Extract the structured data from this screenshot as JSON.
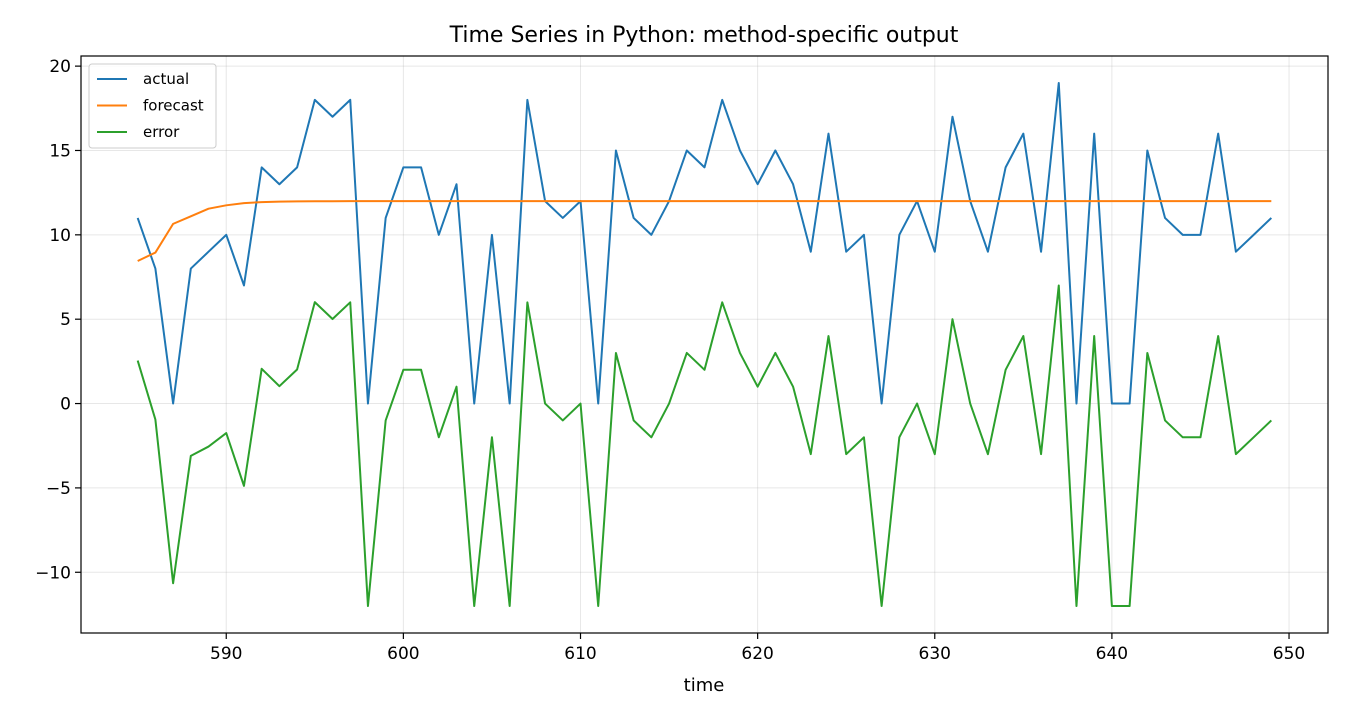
{
  "chart_data": {
    "type": "line",
    "title": "Time Series in Python: method-specific output",
    "xlabel": "time",
    "ylabel": "",
    "xlim": [
      581.8,
      652.2
    ],
    "ylim": [
      -13.6,
      20.6
    ],
    "xticks": [
      590,
      600,
      610,
      620,
      630,
      640,
      650
    ],
    "yticks": [
      20,
      15,
      10,
      5,
      0,
      -5,
      -10
    ],
    "ytick_labels": [
      "20",
      "15",
      "10",
      "5",
      "0",
      "−5",
      "−10"
    ],
    "grid": true,
    "legend_position": "top-left",
    "x": [
      585,
      586,
      587,
      588,
      589,
      590,
      591,
      592,
      593,
      594,
      595,
      596,
      597,
      598,
      599,
      600,
      601,
      602,
      603,
      604,
      605,
      606,
      607,
      608,
      609,
      610,
      611,
      612,
      613,
      614,
      615,
      616,
      617,
      618,
      619,
      620,
      621,
      622,
      623,
      624,
      625,
      626,
      627,
      628,
      629,
      630,
      631,
      632,
      633,
      634,
      635,
      636,
      637,
      638,
      639,
      640,
      641,
      642,
      643,
      644,
      645,
      646,
      647,
      648,
      649
    ],
    "series": [
      {
        "name": "actual",
        "color": "#1f77b4",
        "values": [
          11,
          8,
          0,
          8,
          9,
          10,
          7,
          14,
          13,
          14,
          18,
          17,
          18,
          0,
          11,
          14,
          14,
          10,
          13,
          0,
          10,
          0,
          18,
          12,
          11,
          12,
          0,
          15,
          11,
          10,
          12,
          15,
          14,
          18,
          15,
          13,
          15,
          13,
          9,
          16,
          9,
          10,
          0,
          10,
          12,
          9,
          17,
          12,
          9,
          14,
          16,
          9,
          19,
          0,
          16,
          0,
          0,
          15,
          11,
          10,
          10,
          16,
          9,
          10,
          11
        ]
      },
      {
        "name": "forecast",
        "color": "#ff7f0e",
        "values": [
          8.45,
          8.95,
          10.65,
          11.1,
          11.55,
          11.75,
          11.88,
          11.94,
          11.97,
          11.98,
          11.99,
          11.99,
          12,
          12,
          12,
          12,
          12,
          12,
          12,
          12,
          12,
          12,
          12,
          12,
          12,
          12,
          12,
          12,
          12,
          12,
          12,
          12,
          12,
          12,
          12,
          12,
          12,
          12,
          12,
          12,
          12,
          12,
          12,
          12,
          12,
          12,
          12,
          12,
          12,
          12,
          12,
          12,
          12,
          12,
          12,
          12,
          12,
          12,
          12,
          12,
          12,
          12,
          12,
          12,
          12
        ]
      },
      {
        "name": "error",
        "color": "#2ca02c",
        "values": [
          2.55,
          -0.95,
          -10.65,
          -3.1,
          -2.55,
          -1.75,
          -4.88,
          2.06,
          1.03,
          2.02,
          6.01,
          5.01,
          6,
          -12,
          -1,
          2,
          2,
          -2,
          1,
          -12,
          -2,
          -12,
          6,
          0,
          -1,
          0,
          -12,
          3,
          -1,
          -2,
          0,
          3,
          2,
          6,
          3,
          1,
          3,
          1,
          -3,
          4,
          -3,
          -2,
          -12,
          -2,
          0,
          -3,
          5,
          0,
          -3,
          2,
          4,
          -3,
          7,
          -12,
          4,
          -12,
          -12,
          3,
          -1,
          -2,
          -2,
          4,
          -3,
          -2,
          -1
        ]
      }
    ]
  }
}
